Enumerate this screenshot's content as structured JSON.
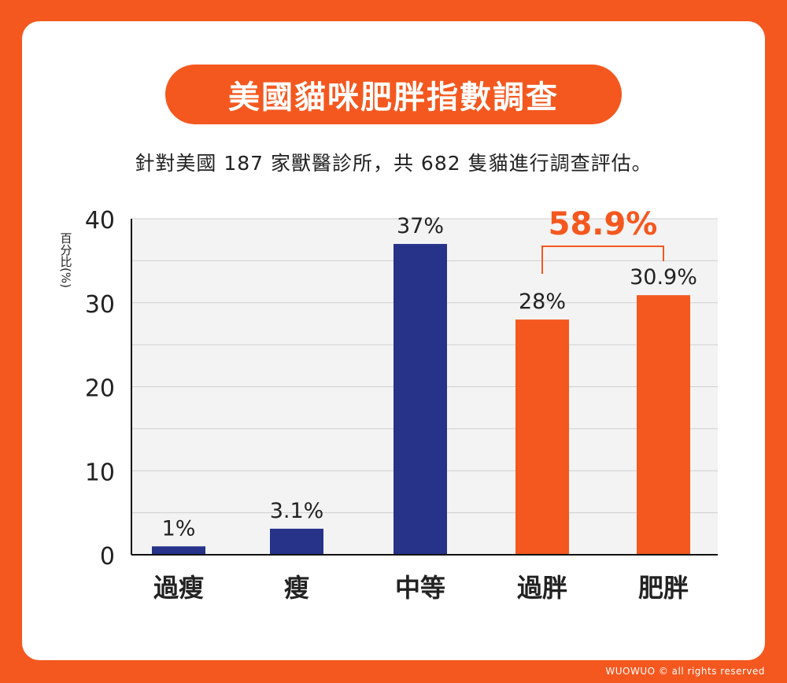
{
  "title": "美國貓咪肥胖指數調查",
  "subtitle": "針對美國 187 家獸醫診所，共 682 隻貓進行調查評估。",
  "footer": "WUOWUO © all rights reserved",
  "colors": {
    "background": "#f4581f",
    "normal_bar": "#263389",
    "highlight_bar": "#f4581f"
  },
  "chart_data": {
    "type": "bar",
    "title": "",
    "xlabel": "",
    "ylabel": "百分比(%)",
    "categories": [
      "過瘦",
      "瘦",
      "中等",
      "過胖",
      "肥胖"
    ],
    "values": [
      1,
      3.1,
      37,
      28,
      30.9
    ],
    "value_labels": [
      "1%",
      "3.1%",
      "37%",
      "28%",
      "30.9%"
    ],
    "bar_colors": [
      "#263389",
      "#263389",
      "#263389",
      "#f4581f",
      "#f4581f"
    ],
    "ylim": [
      0,
      40
    ],
    "yticks": [
      0,
      10,
      20,
      30,
      40
    ],
    "grid": true,
    "annotation": {
      "text": "58.9%",
      "spans": [
        "過胖",
        "肥胖"
      ],
      "color": "#f4581f"
    }
  }
}
